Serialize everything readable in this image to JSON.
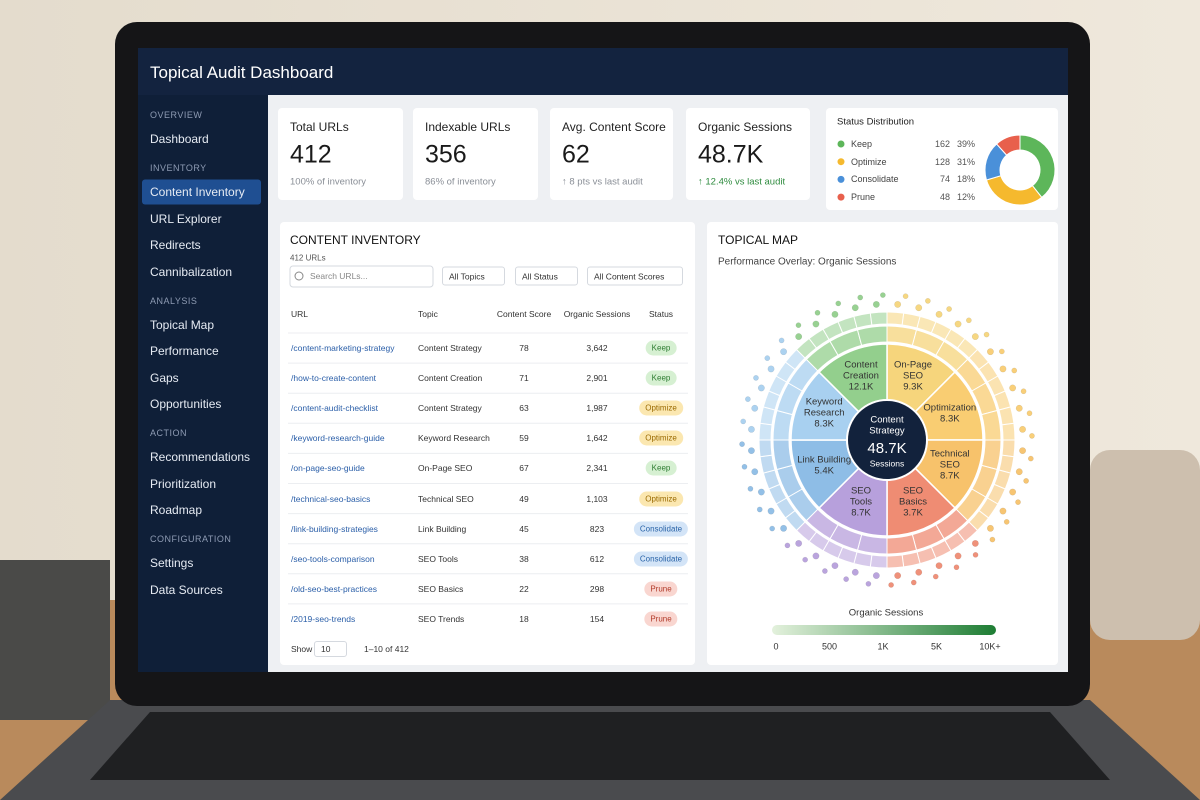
{
  "header": {
    "title": "Topical Audit Dashboard"
  },
  "sidebar": [
    {
      "section": "OVERVIEW",
      "items": [
        {
          "label": "Dashboard"
        }
      ]
    },
    {
      "section": "INVENTORY",
      "items": [
        {
          "label": "Content Inventory",
          "active": true
        },
        {
          "label": "URL Explorer"
        },
        {
          "label": "Redirects"
        },
        {
          "label": "Cannibalization"
        }
      ]
    },
    {
      "section": "ANALYSIS",
      "items": [
        {
          "label": "Topical Map"
        },
        {
          "label": "Performance"
        },
        {
          "label": "Gaps"
        },
        {
          "label": "Opportunities"
        }
      ]
    },
    {
      "section": "ACTION",
      "items": [
        {
          "label": "Recommendations"
        },
        {
          "label": "Prioritization"
        },
        {
          "label": "Roadmap"
        }
      ]
    },
    {
      "section": "CONFIGURATION",
      "items": [
        {
          "label": "Settings"
        },
        {
          "label": "Data Sources"
        }
      ]
    }
  ],
  "kpis": [
    {
      "label": "Total URLs",
      "value": "412",
      "note": "100% of inventory"
    },
    {
      "label": "Indexable URLs",
      "value": "356",
      "note": "86% of inventory"
    },
    {
      "label": "Avg. Content Score",
      "value": "62",
      "note": "↑ 8 pts vs last audit"
    },
    {
      "label": "Organic Sessions",
      "value": "48.7K",
      "note": "↑ 12.4% vs last audit",
      "trend_color": "#2e8b3e"
    }
  ],
  "status_distribution": {
    "type": "pie",
    "title": "Status Distribution",
    "categories": [
      "Keep",
      "Optimize",
      "Consolidate",
      "Prune"
    ],
    "values": [
      162,
      128,
      74,
      48
    ],
    "value_labels": [
      "39%",
      "31%",
      "18%",
      "12%"
    ],
    "colors": [
      "#5db65a",
      "#f5b92e",
      "#4a90d9",
      "#e8604c"
    ]
  },
  "table": {
    "title": "CONTENT INVENTORY",
    "subtitle": "412 URLs",
    "search_placeholder": "Search URLs...",
    "filters": [
      "All Topics",
      "All Status",
      "All Content Scores"
    ],
    "columns": [
      "URL",
      "Topic",
      "Content Score",
      "Organic Sessions",
      "Status"
    ],
    "rows": [
      [
        "/content-marketing-strategy",
        "Content Strategy",
        "78",
        "3,642",
        "Keep"
      ],
      [
        "/how-to-create-content",
        "Content Creation",
        "71",
        "2,901",
        "Keep"
      ],
      [
        "/content-audit-checklist",
        "Content Strategy",
        "63",
        "1,987",
        "Optimize"
      ],
      [
        "/keyword-research-guide",
        "Keyword Research",
        "59",
        "1,642",
        "Optimize"
      ],
      [
        "/on-page-seo-guide",
        "On-Page SEO",
        "67",
        "2,341",
        "Keep"
      ],
      [
        "/technical-seo-basics",
        "Technical SEO",
        "49",
        "1,103",
        "Optimize"
      ],
      [
        "/link-building-strategies",
        "Link Building",
        "45",
        "823",
        "Consolidate"
      ],
      [
        "/seo-tools-comparison",
        "SEO Tools",
        "38",
        "612",
        "Consolidate"
      ],
      [
        "/old-seo-best-practices",
        "SEO Basics",
        "22",
        "298",
        "Prune"
      ],
      [
        "/2019-seo-trends",
        "SEO Trends",
        "18",
        "154",
        "Prune"
      ]
    ],
    "status_colors": {
      "Keep": [
        "#d6f0d2",
        "#2e7d32"
      ],
      "Optimize": [
        "#fbe7b0",
        "#9a6a00"
      ],
      "Consolidate": [
        "#d3e4f7",
        "#2a64a8"
      ],
      "Prune": [
        "#f9d6d0",
        "#b23b2a"
      ]
    },
    "footer": {
      "show": "Show",
      "page_size": "10",
      "range": "1–10 of 412"
    }
  },
  "topical_map": {
    "title": "TOPICAL MAP",
    "subtitle": "Performance Overlay: Organic Sessions",
    "center": {
      "lines": [
        "Content",
        "Strategy"
      ],
      "value": "48.7K",
      "unit": "Sessions"
    },
    "segments": [
      {
        "label": [
          "On-Page",
          "SEO"
        ],
        "value": "9.3K",
        "color": "#f6d57c"
      },
      {
        "label": [
          "Optimization"
        ],
        "value": "8.3K",
        "color": "#f9cd72"
      },
      {
        "label": [
          "Technical",
          "SEO"
        ],
        "value": "8.7K",
        "color": "#f7c26b"
      },
      {
        "label": [
          "SEO",
          "Basics"
        ],
        "value": "3.7K",
        "color": "#ef8c73"
      },
      {
        "label": [
          "SEO",
          "Tools"
        ],
        "value": "8.7K",
        "color": "#b7a0dc"
      },
      {
        "label": [
          "Link Building"
        ],
        "value": "5.4K",
        "color": "#8ebde6"
      },
      {
        "label": [
          "Keyword",
          "Research"
        ],
        "value": "8.3K",
        "color": "#a8d0f0"
      },
      {
        "label": [
          "Content",
          "Creation"
        ],
        "value": "12.1K",
        "color": "#93cf8d"
      }
    ],
    "legend": {
      "title": "Organic Sessions",
      "ticks": [
        "0",
        "500",
        "1K",
        "5K",
        "10K+"
      ],
      "colors": [
        "#e3f1dc",
        "#1e7d34"
      ]
    }
  }
}
